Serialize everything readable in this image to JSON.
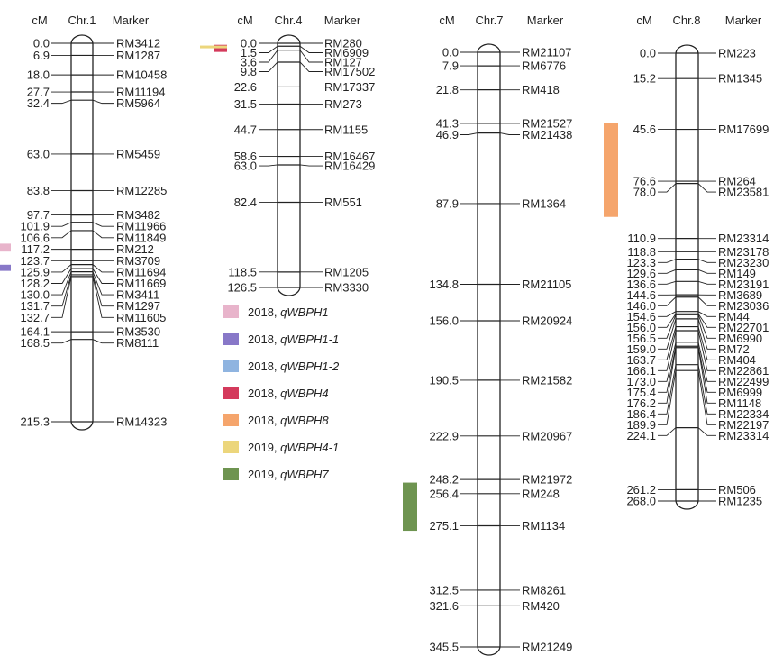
{
  "column_headers": {
    "cm": "cM",
    "marker": "Marker"
  },
  "chromosomes": [
    {
      "name": "Chr.1",
      "max_cm": 215.3,
      "markers": [
        {
          "cm": "0.0",
          "name": "RM3412"
        },
        {
          "cm": "6.9",
          "name": "RM1287"
        },
        {
          "cm": "18.0",
          "name": "RM10458"
        },
        {
          "cm": "27.7",
          "name": "RM11194"
        },
        {
          "cm": "32.4",
          "name": "RM5964"
        },
        {
          "cm": "63.0",
          "name": "RM5459"
        },
        {
          "cm": "83.8",
          "name": "RM12285"
        },
        {
          "cm": "97.7",
          "name": "RM3482"
        },
        {
          "cm": "101.9",
          "name": "RM11966"
        },
        {
          "cm": "106.6",
          "name": "RM11849"
        },
        {
          "cm": "117.2",
          "name": "RM212"
        },
        {
          "cm": "123.7",
          "name": "RM3709"
        },
        {
          "cm": "125.9",
          "name": "RM11694"
        },
        {
          "cm": "128.2",
          "name": "RM11669"
        },
        {
          "cm": "130.0",
          "name": "RM3411"
        },
        {
          "cm": "131.7",
          "name": "RM1297"
        },
        {
          "cm": "132.7",
          "name": "RM11605"
        },
        {
          "cm": "164.1",
          "name": "RM3530"
        },
        {
          "cm": "168.5",
          "name": "RM8111"
        },
        {
          "cm": "215.3",
          "name": "RM14323"
        }
      ],
      "qtls": [
        {
          "legend_index": 0,
          "from_cm": 114.0,
          "to_cm": 118.5
        },
        {
          "legend_index": 1,
          "from_cm": 126.0,
          "to_cm": 129.5
        }
      ]
    },
    {
      "name": "Chr.4",
      "max_cm": 126.5,
      "markers": [
        {
          "cm": "0.0",
          "name": "RM280"
        },
        {
          "cm": "1.5",
          "name": "RM6909"
        },
        {
          "cm": "3.6",
          "name": "RM127"
        },
        {
          "cm": "9.8",
          "name": "RM17502"
        },
        {
          "cm": "22.6",
          "name": "RM17337"
        },
        {
          "cm": "31.5",
          "name": "RM273"
        },
        {
          "cm": "44.7",
          "name": "RM1155"
        },
        {
          "cm": "58.6",
          "name": "RM16467"
        },
        {
          "cm": "63.0",
          "name": "RM16429"
        },
        {
          "cm": "82.4",
          "name": "RM551"
        },
        {
          "cm": "118.5",
          "name": "RM1205"
        },
        {
          "cm": "126.5",
          "name": "RM3330"
        }
      ],
      "qtls": [
        {
          "legend_index": 3,
          "from_cm": 0.8,
          "to_cm": 4.5
        },
        {
          "legend_index": 5,
          "from_cm": 1.2,
          "to_cm": 2.0
        }
      ]
    },
    {
      "name": "Chr.7",
      "max_cm": 345.5,
      "markers": [
        {
          "cm": "0.0",
          "name": "RM21107"
        },
        {
          "cm": "7.9",
          "name": "RM6776"
        },
        {
          "cm": "21.8",
          "name": "RM418"
        },
        {
          "cm": "41.3",
          "name": "RM21527"
        },
        {
          "cm": "46.9",
          "name": "RM21438"
        },
        {
          "cm": "87.9",
          "name": "RM1364"
        },
        {
          "cm": "134.8",
          "name": "RM21105"
        },
        {
          "cm": "156.0",
          "name": "RM20924"
        },
        {
          "cm": "190.5",
          "name": "RM21582"
        },
        {
          "cm": "222.9",
          "name": "RM20967"
        },
        {
          "cm": "248.2",
          "name": "RM21972"
        },
        {
          "cm": "256.4",
          "name": "RM248"
        },
        {
          "cm": "275.1",
          "name": "RM1134"
        },
        {
          "cm": "312.5",
          "name": "RM8261"
        },
        {
          "cm": "321.6",
          "name": "RM420"
        },
        {
          "cm": "345.5",
          "name": "RM21249"
        }
      ],
      "qtls": [
        {
          "legend_index": 6,
          "from_cm": 250.0,
          "to_cm": 278.0
        }
      ]
    },
    {
      "name": "Chr.8",
      "max_cm": 268.0,
      "markers": [
        {
          "cm": "0.0",
          "name": "RM223"
        },
        {
          "cm": "15.2",
          "name": "RM1345"
        },
        {
          "cm": "45.6",
          "name": "RM17699"
        },
        {
          "cm": "76.6",
          "name": "RM264"
        },
        {
          "cm": "78.0",
          "name": "RM23581"
        },
        {
          "cm": "110.9",
          "name": "RM23314"
        },
        {
          "cm": "118.8",
          "name": "RM23178"
        },
        {
          "cm": "123.3",
          "name": "RM23230"
        },
        {
          "cm": "129.6",
          "name": "RM149"
        },
        {
          "cm": "136.6",
          "name": "RM23191"
        },
        {
          "cm": "144.6",
          "name": "RM3689"
        },
        {
          "cm": "146.0",
          "name": "RM23036"
        },
        {
          "cm": "154.6",
          "name": "RM44"
        },
        {
          "cm": "156.0",
          "name": "RM22701"
        },
        {
          "cm": "156.5",
          "name": "RM6990"
        },
        {
          "cm": "159.0",
          "name": "RM72"
        },
        {
          "cm": "163.7",
          "name": "RM404"
        },
        {
          "cm": "166.1",
          "name": "RM22861"
        },
        {
          "cm": "173.0",
          "name": "RM22499"
        },
        {
          "cm": "175.4",
          "name": "RM6999"
        },
        {
          "cm": "176.2",
          "name": "RM1148"
        },
        {
          "cm": "186.4",
          "name": "RM22334"
        },
        {
          "cm": "189.9",
          "name": "RM22197"
        },
        {
          "cm": "224.1",
          "name": "RM23314"
        },
        {
          "cm": "261.2",
          "name": "RM506"
        },
        {
          "cm": "268.0",
          "name": "RM1235"
        }
      ],
      "qtls": [
        {
          "legend_index": 4,
          "from_cm": 42.0,
          "to_cm": 98.0
        }
      ]
    }
  ],
  "legend": [
    {
      "year": "2018, ",
      "qtl": "qWBPH1",
      "color": "#e8b4cb"
    },
    {
      "year": "2018, ",
      "qtl": "qWBPH1-1",
      "color": "#8878c8"
    },
    {
      "year": "2018, ",
      "qtl": "qWBPH1-2",
      "color": "#8fb4e0"
    },
    {
      "year": "2018, ",
      "qtl": "qWBPH4",
      "color": "#d43a5c"
    },
    {
      "year": "2018, ",
      "qtl": "qWBPH8",
      "color": "#f5a56c"
    },
    {
      "year": "2019, ",
      "qtl": "qWBPH4-1",
      "color": "#ecd67c"
    },
    {
      "year": "2019, ",
      "qtl": "qWBPH7",
      "color": "#6e9450"
    }
  ]
}
